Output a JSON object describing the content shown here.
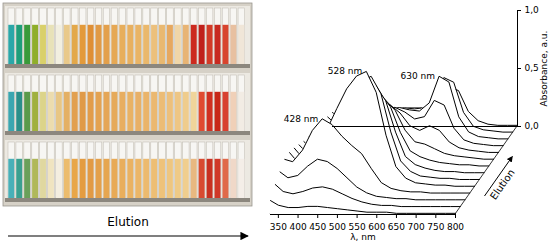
{
  "photo": {
    "label": "Elution",
    "rows": [
      [
        "#2aa7a8",
        "#1f9e7a",
        "#3a9a3a",
        "#8fae2a",
        "#d9d06a",
        "#e8e2b8",
        "#f2efe0",
        "#e9c98a",
        "#e3a84a",
        "#e39a3a",
        "#df8f35",
        "#e19a45",
        "#e3a04c",
        "#e6a854",
        "#e7ae5c",
        "#e8b060",
        "#e9b466",
        "#eab86c",
        "#ecc07c",
        "#e9b870",
        "#e6a860",
        "#f0d6a8",
        "#e8b474",
        "#cc2a1e",
        "#c0201a",
        "#d23a26",
        "#c82a20",
        "#d8442e",
        "#e8c0a0",
        "#f0e6d8"
      ],
      [
        "#3aa6b0",
        "#2a8f8a",
        "#5a9a4a",
        "#a0b040",
        "#dcd48a",
        "#ecdcae",
        "#e8c684",
        "#e4b064",
        "#e2a050",
        "#e09a48",
        "#e29c4a",
        "#e4a250",
        "#e5a656",
        "#e6aa5a",
        "#e8ae60",
        "#e9b264",
        "#e8b066",
        "#eab46a",
        "#ebb870",
        "#ecbc76",
        "#edc07c",
        "#eec684",
        "#efcc8c",
        "#f0d49a",
        "#e04a30",
        "#d03020",
        "#c82818",
        "#d84030",
        "#f0d0b8",
        "#f2ece4"
      ],
      [
        "#48b0b8",
        "#3aa090",
        "#6aa05a",
        "#b0b85a",
        "#e0d8a0",
        "#f0e4c0",
        "#f4eee0",
        "#ecbc6c",
        "#e8a648",
        "#e49c40",
        "#e29a44",
        "#e4a04a",
        "#e6a650",
        "#e8aa56",
        "#e9ae5c",
        "#eab262",
        "#ebb668",
        "#ecba6e",
        "#edbe74",
        "#eec27a",
        "#eec680",
        "#efca86",
        "#f0ce8e",
        "#e8b880",
        "#d84a30",
        "#c83020",
        "#d03828",
        "#e06a4a",
        "#f0d8c8",
        "#f4eee8"
      ]
    ]
  },
  "chart_data": {
    "type": "line",
    "color": "#000000",
    "xlabel": "λ, nm",
    "ylabel": "Absorbance, a.u.",
    "zlabel": "Elution",
    "xlim": [
      330,
      800
    ],
    "xticks": [
      350,
      400,
      450,
      500,
      550,
      600,
      650,
      700,
      750,
      800
    ],
    "ylim": [
      0,
      1
    ],
    "yticks": [
      {
        "value": 0,
        "label": "0,0"
      },
      {
        "value": 0.5,
        "label": "0,5"
      },
      {
        "value": 1,
        "label": "1,0"
      }
    ],
    "annotations": [
      {
        "text": "428 nm",
        "x": 428
      },
      {
        "text": "528 nm",
        "x": 528
      },
      {
        "text": "630 nm",
        "x": 630
      }
    ],
    "x": [
      330,
      350,
      375,
      400,
      425,
      450,
      475,
      500,
      525,
      550,
      575,
      600,
      625,
      650,
      675,
      700,
      725,
      750,
      775,
      800
    ],
    "series": [
      {
        "values": [
          0.12,
          0.08,
          0.06,
          0.06,
          0.07,
          0.07,
          0.06,
          0.05,
          0.04,
          0.03,
          0.02,
          0.02,
          0.02,
          0.01,
          0.01,
          0.01,
          0.01,
          0.01,
          0.01,
          0.01
        ]
      },
      {
        "values": [
          0.2,
          0.14,
          0.12,
          0.14,
          0.17,
          0.18,
          0.16,
          0.12,
          0.08,
          0.05,
          0.03,
          0.02,
          0.02,
          0.01,
          0.01,
          0.01,
          0.01,
          0.01,
          0.01,
          0.01
        ]
      },
      {
        "values": [
          0.25,
          0.2,
          0.22,
          0.3,
          0.36,
          0.34,
          0.28,
          0.2,
          0.12,
          0.07,
          0.04,
          0.03,
          0.02,
          0.02,
          0.01,
          0.01,
          0.01,
          0.01,
          0.01,
          0.01
        ]
      },
      {
        "values": [
          0.3,
          0.28,
          0.38,
          0.55,
          0.65,
          0.6,
          0.5,
          0.42,
          0.35,
          0.22,
          0.1,
          0.05,
          0.03,
          0.02,
          0.02,
          0.01,
          0.01,
          0.01,
          0.01,
          0.01
        ]
      },
      {
        "values": [
          0.3,
          0.22,
          0.25,
          0.35,
          0.5,
          0.68,
          0.85,
          0.96,
          1.0,
          0.82,
          0.45,
          0.18,
          0.08,
          0.04,
          0.03,
          0.02,
          0.02,
          0.01,
          0.01,
          0.01
        ]
      },
      {
        "values": [
          0.28,
          0.2,
          0.22,
          0.3,
          0.42,
          0.58,
          0.74,
          0.85,
          0.9,
          0.75,
          0.42,
          0.17,
          0.08,
          0.04,
          0.03,
          0.02,
          0.02,
          0.01,
          0.01,
          0.01
        ]
      },
      {
        "values": [
          0.25,
          0.18,
          0.2,
          0.26,
          0.36,
          0.5,
          0.63,
          0.72,
          0.76,
          0.63,
          0.36,
          0.15,
          0.08,
          0.05,
          0.03,
          0.02,
          0.02,
          0.01,
          0.01,
          0.01
        ]
      },
      {
        "values": [
          0.22,
          0.16,
          0.18,
          0.22,
          0.3,
          0.42,
          0.53,
          0.6,
          0.63,
          0.52,
          0.3,
          0.14,
          0.09,
          0.06,
          0.04,
          0.03,
          0.02,
          0.02,
          0.01,
          0.01
        ]
      },
      {
        "values": [
          0.2,
          0.14,
          0.15,
          0.18,
          0.25,
          0.35,
          0.44,
          0.5,
          0.52,
          0.43,
          0.26,
          0.16,
          0.14,
          0.1,
          0.06,
          0.04,
          0.03,
          0.02,
          0.01,
          0.01
        ]
      },
      {
        "values": [
          0.18,
          0.12,
          0.13,
          0.15,
          0.2,
          0.28,
          0.36,
          0.41,
          0.42,
          0.35,
          0.24,
          0.2,
          0.24,
          0.2,
          0.1,
          0.05,
          0.03,
          0.02,
          0.01,
          0.01
        ]
      },
      {
        "values": [
          0.16,
          0.1,
          0.11,
          0.13,
          0.17,
          0.23,
          0.29,
          0.33,
          0.34,
          0.3,
          0.24,
          0.26,
          0.4,
          0.36,
          0.16,
          0.06,
          0.03,
          0.02,
          0.01,
          0.01
        ]
      },
      {
        "values": [
          0.15,
          0.09,
          0.1,
          0.11,
          0.14,
          0.19,
          0.24,
          0.27,
          0.28,
          0.26,
          0.25,
          0.32,
          0.55,
          0.5,
          0.2,
          0.07,
          0.03,
          0.02,
          0.01,
          0.01
        ]
      },
      {
        "values": [
          0.14,
          0.08,
          0.08,
          0.09,
          0.11,
          0.15,
          0.19,
          0.21,
          0.22,
          0.21,
          0.22,
          0.3,
          0.48,
          0.44,
          0.18,
          0.06,
          0.03,
          0.02,
          0.01,
          0.01
        ]
      },
      {
        "values": [
          0.12,
          0.07,
          0.07,
          0.08,
          0.09,
          0.11,
          0.13,
          0.15,
          0.16,
          0.16,
          0.17,
          0.22,
          0.34,
          0.31,
          0.13,
          0.05,
          0.02,
          0.01,
          0.01,
          0.01
        ]
      }
    ]
  }
}
